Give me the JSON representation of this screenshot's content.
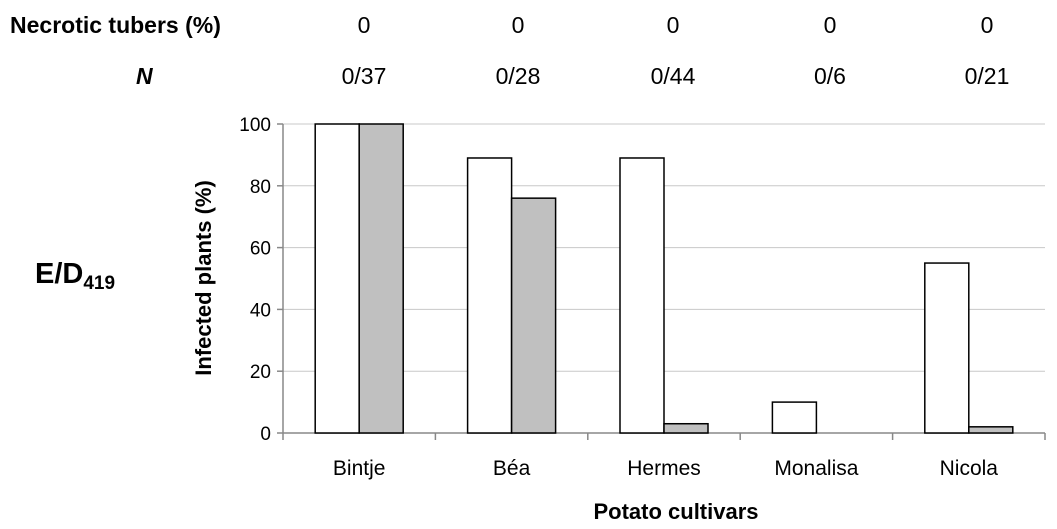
{
  "header_rows": {
    "necrotic_label": "Necrotic tubers (%)",
    "n_label": "N",
    "necrotic_values": [
      "0",
      "0",
      "0",
      "0",
      "0"
    ],
    "n_values": [
      "0/37",
      "0/28",
      "0/44",
      "0/6",
      "0/21"
    ]
  },
  "panel_label": {
    "main": "E/D",
    "sub": "419"
  },
  "chart_data": {
    "type": "bar",
    "categories": [
      "Bintje",
      "Béa",
      "Hermes",
      "Monalisa",
      "Nicola"
    ],
    "series": [
      {
        "values": [
          100,
          89,
          89,
          10,
          55
        ],
        "color": "#ffffff"
      },
      {
        "values": [
          100,
          76,
          3,
          0,
          2
        ],
        "color": "#c0c0c0"
      }
    ],
    "ylabel": "Infected plants (%)",
    "xlabel": "Potato cultivars",
    "ylim": [
      0,
      100
    ],
    "yticks": [
      0,
      20,
      40,
      60,
      80,
      100
    ],
    "grid": true
  }
}
